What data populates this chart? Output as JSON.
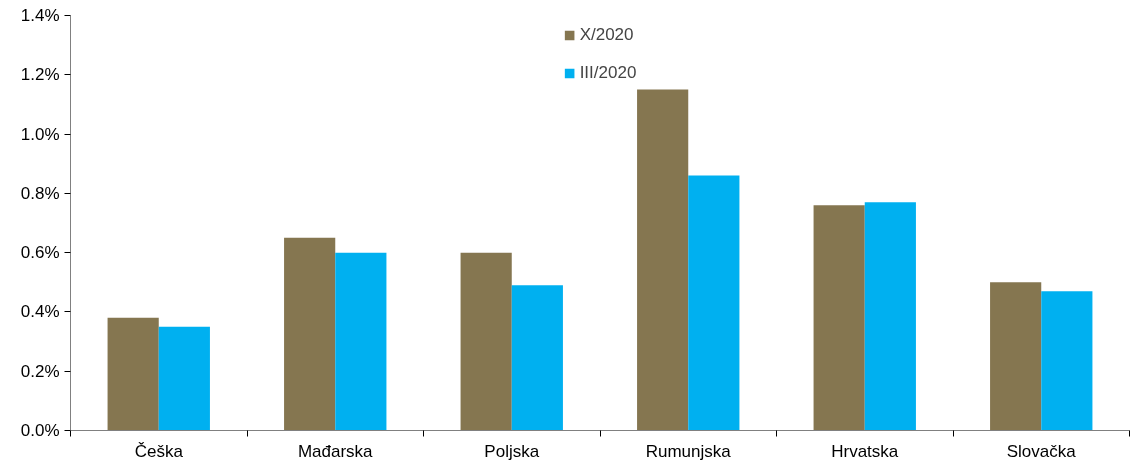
{
  "chart_data": {
    "type": "bar",
    "categories": [
      "Češka",
      "Mađarska",
      "Poljska",
      "Rumunjska",
      "Hrvatska",
      "Slovačka"
    ],
    "series": [
      {
        "name": "X/2020",
        "color": "#857650",
        "values": [
          0.38,
          0.65,
          0.6,
          1.15,
          0.76,
          0.5
        ]
      },
      {
        "name": "III/2020",
        "color": "#00b0f0",
        "values": [
          0.35,
          0.6,
          0.49,
          0.86,
          0.77,
          0.47
        ]
      }
    ],
    "ylim": [
      0,
      1.4
    ],
    "yticks": [
      {
        "value": 0,
        "label": "0.0%"
      },
      {
        "value": 0.2,
        "label": "0.2%"
      },
      {
        "value": 0.4,
        "label": "0.4%"
      },
      {
        "value": 0.6,
        "label": "0.6%"
      },
      {
        "value": 0.8,
        "label": "0.8%"
      },
      {
        "value": 1.0,
        "label": "1.0%"
      },
      {
        "value": 1.2,
        "label": "1.2%"
      },
      {
        "value": 1.4,
        "label": "1.4%"
      }
    ],
    "grid": false,
    "legend": "top"
  }
}
